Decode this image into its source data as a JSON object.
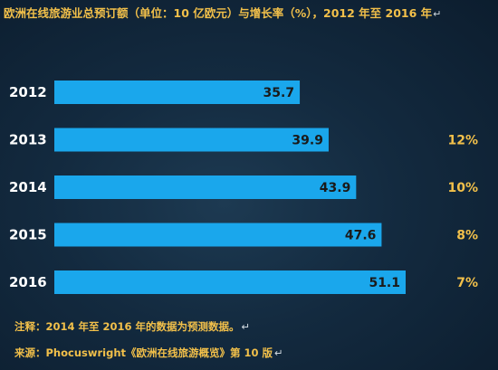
{
  "title": "欧洲在线旅游业总预订额（单位：10 亿欧元）与增长率（%），2012 年至 2016 年",
  "title_mark": "↵",
  "footnote": "注释：2014 年至 2016 年的数据为预测数据。",
  "source": "来源：Phocuswright《欧洲在线旅游概览》第 10 版",
  "note_mark": "↵",
  "colors": {
    "bar": "#1aa7ec",
    "bar_label": "#1a1a1a",
    "year_label": "#ffffff",
    "growth_label": "#f2c04a",
    "title": "#f2c04a"
  },
  "chart_data": {
    "type": "bar",
    "orientation": "horizontal",
    "categories": [
      "2012",
      "2013",
      "2014",
      "2015",
      "2016"
    ],
    "values": [
      35.7,
      39.9,
      43.9,
      47.6,
      51.1
    ],
    "value_labels": [
      "35.7",
      "39.9",
      "43.9",
      "47.6",
      "51.1"
    ],
    "growth": [
      "",
      "12%",
      "10%",
      "8%",
      "7%"
    ],
    "xlim": [
      0,
      51.1
    ]
  }
}
